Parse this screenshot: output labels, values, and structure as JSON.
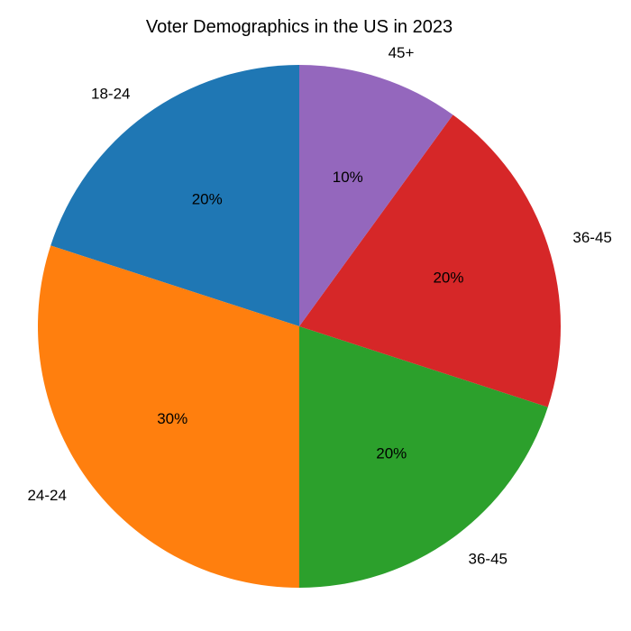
{
  "chart_data": {
    "type": "pie",
    "title": "Voter Demographics in the US in 2023",
    "categories": [
      "18-24",
      "24-24",
      "36-45",
      "36-45",
      "45+"
    ],
    "values": [
      20,
      30,
      20,
      20,
      10
    ],
    "percent_labels": [
      "20%",
      "30%",
      "20%",
      "20%",
      "10%"
    ],
    "colors": [
      "#1f77b4",
      "#ff7f0e",
      "#2ca02c",
      "#d62728",
      "#9467bd"
    ],
    "start_angle_deg": 90,
    "direction": "counterclockwise",
    "legend": "none"
  }
}
